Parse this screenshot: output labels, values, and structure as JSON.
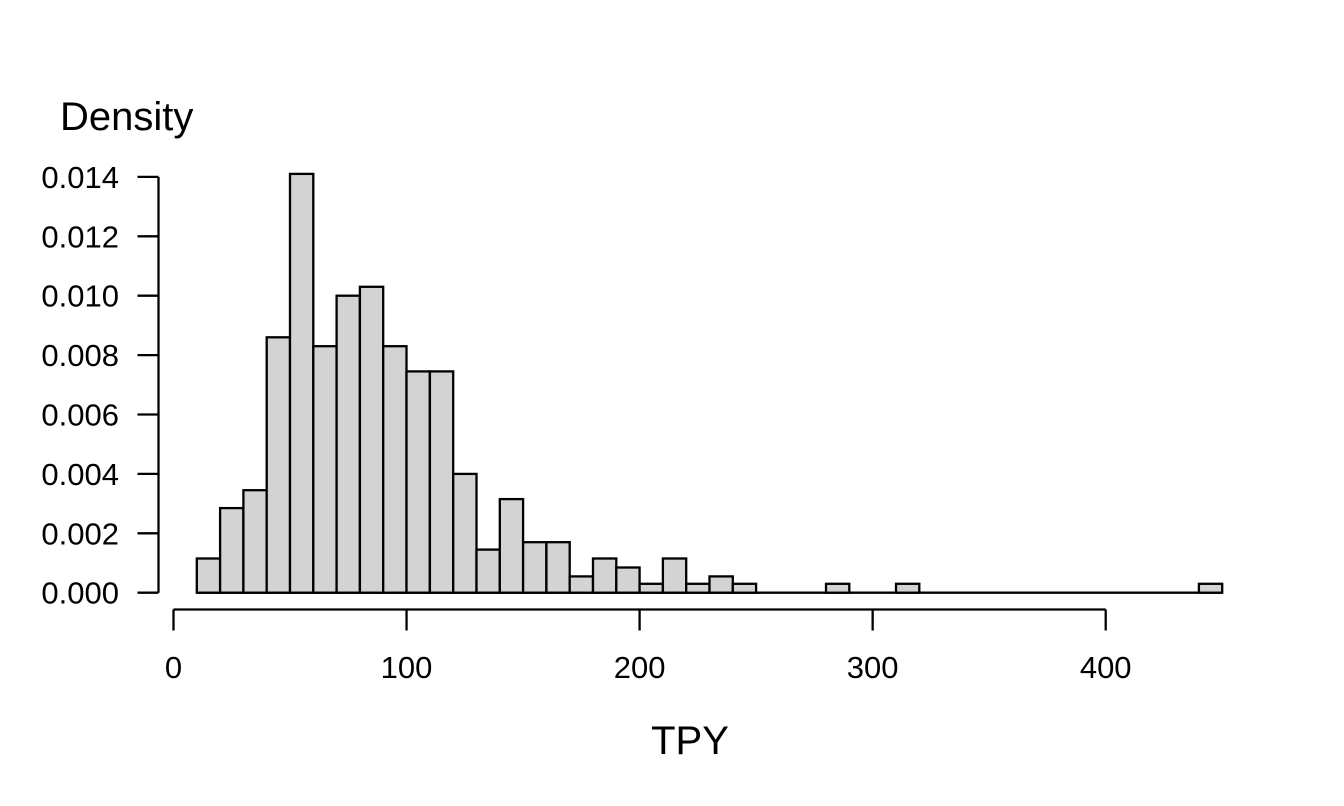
{
  "chart_data": {
    "type": "bar",
    "subtype": "histogram",
    "title": "",
    "xlabel": "TPY",
    "ylabel": "Density",
    "xlim": [
      0,
      450
    ],
    "ylim": [
      0,
      0.0141
    ],
    "x_axis_line_range": [
      0,
      400
    ],
    "x_ticks": [
      0,
      100,
      200,
      300,
      400
    ],
    "x_tick_labels": [
      "0",
      "100",
      "200",
      "300",
      "400"
    ],
    "y_ticks": [
      0,
      0.002,
      0.004,
      0.006,
      0.008,
      0.01,
      0.012,
      0.014
    ],
    "y_tick_labels": [
      "0.000",
      "0.002",
      "0.004",
      "0.006",
      "0.008",
      "0.010",
      "0.012",
      "0.014"
    ],
    "grid": false,
    "legend": false,
    "background": "#ffffff",
    "bar_fill": "#d3d3d3",
    "bar_stroke": "#000000",
    "bin_width": 10,
    "bin_edges": [
      10,
      20,
      30,
      40,
      50,
      60,
      70,
      80,
      90,
      100,
      110,
      120,
      130,
      140,
      150,
      160,
      170,
      180,
      190,
      200,
      210,
      220,
      230,
      240,
      250,
      260,
      270,
      280,
      290,
      300,
      310,
      320,
      330,
      340,
      350,
      360,
      370,
      380,
      390,
      400,
      410,
      420,
      430,
      440,
      450
    ],
    "densities": [
      0.00115,
      0.00285,
      0.00345,
      0.0086,
      0.0141,
      0.0083,
      0.01,
      0.0103,
      0.0083,
      0.00745,
      0.00745,
      0.004,
      0.00145,
      0.00315,
      0.0017,
      0.0017,
      0.00055,
      0.00115,
      0.00085,
      0.0003,
      0.00115,
      0.0003,
      0.00055,
      0.0003,
      0,
      0,
      0,
      0.0003,
      0,
      0,
      0.0003,
      0,
      0,
      0,
      0,
      0,
      0,
      0,
      0,
      0,
      0,
      0,
      0,
      0.0003
    ]
  }
}
